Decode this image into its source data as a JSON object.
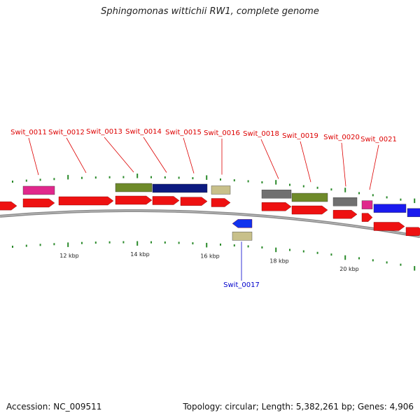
{
  "title": "Sphingomonas wittichii RW1, complete genome",
  "accession": "Accession: NC_009511",
  "summary": "Topology: circular; Length: 5,382,261 bp; Genes: 4,906",
  "colors": {
    "backbone": "#8a8a8a",
    "forward_cds": "#ee1111",
    "reverse_cds": "#1133ee",
    "tick": "#2a8a2a",
    "label_forward": "#dd0000",
    "label_reverse": "#0000cc",
    "cog_magenta": "#e0288c",
    "cog_olive": "#6e8a2a",
    "cog_navy": "#0c1a80",
    "cog_khaki": "#c8c08a",
    "cog_gray": "#707070",
    "cog_blue": "#1a1aee"
  },
  "scale": {
    "unit": "kbp",
    "major_labels": [
      "12 kbp",
      "14 kbp",
      "16 kbp",
      "18 kbp",
      "20 kbp"
    ]
  },
  "genes": [
    {
      "id": "Swit_0011",
      "strand": "+",
      "cog": "cog_magenta"
    },
    {
      "id": "Swit_0012",
      "strand": "+",
      "cog": null
    },
    {
      "id": "Swit_0013",
      "strand": "+",
      "cog": "cog_olive"
    },
    {
      "id": "Swit_0014",
      "strand": "+",
      "cog": "cog_navy"
    },
    {
      "id": "Swit_0015",
      "strand": "+",
      "cog": "cog_navy"
    },
    {
      "id": "Swit_0016",
      "strand": "+",
      "cog": "cog_khaki"
    },
    {
      "id": "Swit_0017",
      "strand": "-",
      "cog": "cog_khaki"
    },
    {
      "id": "Swit_0018",
      "strand": "+",
      "cog": "cog_gray"
    },
    {
      "id": "Swit_0019",
      "strand": "+",
      "cog": "cog_olive"
    },
    {
      "id": "Swit_0020",
      "strand": "+",
      "cog": "cog_gray"
    },
    {
      "id": "Swit_0021",
      "strand": "+",
      "cog": "cog_magenta"
    }
  ]
}
